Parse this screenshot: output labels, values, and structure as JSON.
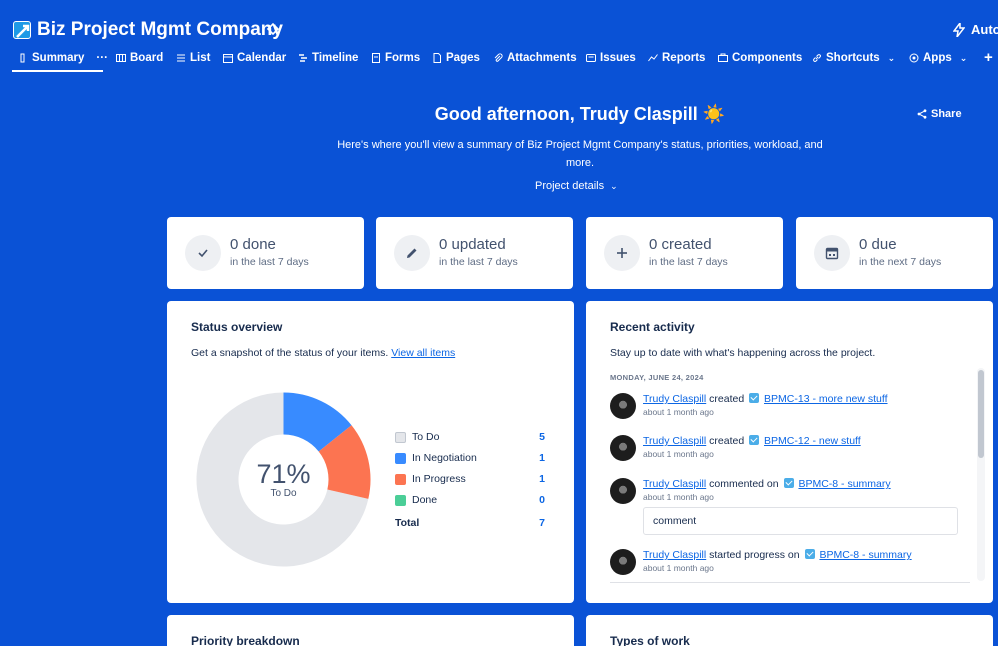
{
  "header": {
    "project_title": "Biz Project Mgmt Company",
    "automation_label": "Autor"
  },
  "tabs": [
    {
      "label": "Summary",
      "icon": "summary-icon",
      "active": true
    },
    {
      "label": "Board",
      "icon": "board-icon"
    },
    {
      "label": "List",
      "icon": "list-icon"
    },
    {
      "label": "Calendar",
      "icon": "calendar-icon"
    },
    {
      "label": "Timeline",
      "icon": "timeline-icon"
    },
    {
      "label": "Forms",
      "icon": "forms-icon"
    },
    {
      "label": "Pages",
      "icon": "pages-icon"
    },
    {
      "label": "Attachments",
      "icon": "attachment-icon"
    },
    {
      "label": "Issues",
      "icon": "issues-icon"
    },
    {
      "label": "Reports",
      "icon": "reports-icon"
    },
    {
      "label": "Components",
      "icon": "components-icon"
    },
    {
      "label": "Shortcuts",
      "icon": "link-icon"
    },
    {
      "label": "Apps",
      "icon": "apps-icon"
    }
  ],
  "greeting": {
    "title": "Good afternoon, Trudy Claspill ☀️",
    "subtitle": "Here's where you'll view a summary of Biz Project Mgmt Company's status, priorities, workload, and more.",
    "project_details": "Project details",
    "share": "Share"
  },
  "stats": [
    {
      "big": "0 done",
      "small": "in the last 7 days",
      "icon": "check-icon"
    },
    {
      "big": "0 updated",
      "small": "in the last 7 days",
      "icon": "pencil-icon"
    },
    {
      "big": "0 created",
      "small": "in the last 7 days",
      "icon": "plus-icon"
    },
    {
      "big": "0 due",
      "small": "in the next 7 days",
      "icon": "calendar-icon"
    }
  ],
  "status_overview": {
    "title": "Status overview",
    "desc": "Get a snapshot of the status of your items.",
    "link": "View all items",
    "center_pct": "71%",
    "center_label": "To Do",
    "total_label": "Total",
    "total_value": "7"
  },
  "chart_data": {
    "type": "pie",
    "categories": [
      "To Do",
      "In Negotiation",
      "In Progress",
      "Done"
    ],
    "values": [
      5,
      1,
      1,
      0
    ],
    "colors": [
      "#e4e6ea",
      "#388bff",
      "#fc7451",
      "#4bce97"
    ],
    "donut": true,
    "legend": "right"
  },
  "recent_activity": {
    "title": "Recent activity",
    "desc": "Stay up to date with what's happening across the project.",
    "date": "MONDAY, JUNE 24, 2024",
    "items": [
      {
        "user": "Trudy Claspill",
        "action": "created",
        "link": "BPMC-13 - more new stuff",
        "time": "about 1 month ago"
      },
      {
        "user": "Trudy Claspill",
        "action": "created",
        "link": "BPMC-12 - new stuff",
        "time": "about 1 month ago"
      },
      {
        "user": "Trudy Claspill",
        "action": "commented on",
        "link": "BPMC-8 - summary",
        "time": "about 1 month ago",
        "comment": "comment"
      },
      {
        "user": "Trudy Claspill",
        "action": "started progress on",
        "link": "BPMC-8 - summary",
        "time": "about 1 month ago"
      }
    ]
  },
  "bottom_panels": {
    "priority": "Priority breakdown",
    "types": "Types of work"
  }
}
